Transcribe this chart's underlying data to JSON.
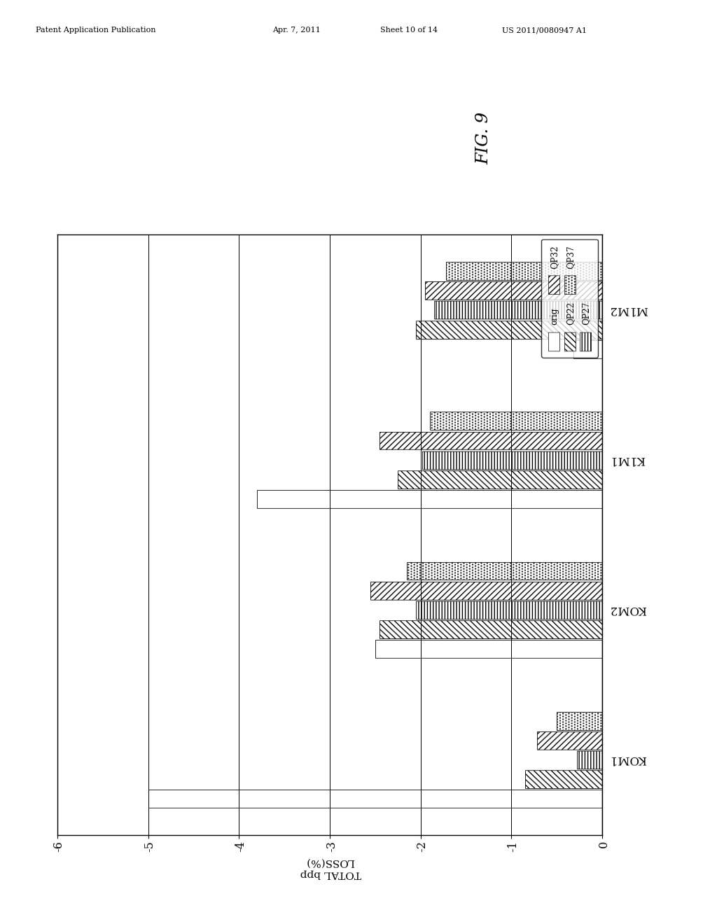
{
  "categories": [
    "KOM1",
    "KOM2",
    "K1M1",
    "M1M2"
  ],
  "series_labels": [
    "orig",
    "QP22",
    "QP27",
    "QP32",
    "QP37"
  ],
  "data": {
    "KOM1": [
      -5.0,
      -0.85,
      -0.28,
      -0.72,
      -0.5
    ],
    "KOM2": [
      -2.5,
      -2.45,
      -2.05,
      -2.55,
      -2.15
    ],
    "K1M1": [
      -3.8,
      -2.25,
      -1.98,
      -2.45,
      -1.9
    ],
    "M1M2": [
      -0.32,
      -2.05,
      -1.85,
      -1.95,
      -1.72
    ]
  },
  "hatches": [
    "",
    "////",
    "----",
    "\\\\\\\\",
    "...."
  ],
  "facecolors": [
    "white",
    "white",
    "white",
    "white",
    "white"
  ],
  "ylim_min": 0,
  "ylim_max": -6,
  "yticks": [
    0,
    -1,
    -2,
    -3,
    -4,
    -5,
    -6
  ],
  "ylabel": "TOTAL bpp\nLOSS(%)",
  "fig_label": "FIG. 9",
  "bar_width": 0.12,
  "bar_spacing": 0.01,
  "header_parts": [
    [
      "Patent Application Publication",
      0.05
    ],
    [
      "Apr. 7, 2011",
      0.38
    ],
    [
      "Sheet 10 of 14",
      0.53
    ],
    [
      "US 2011/0080947 A1",
      0.7
    ]
  ]
}
